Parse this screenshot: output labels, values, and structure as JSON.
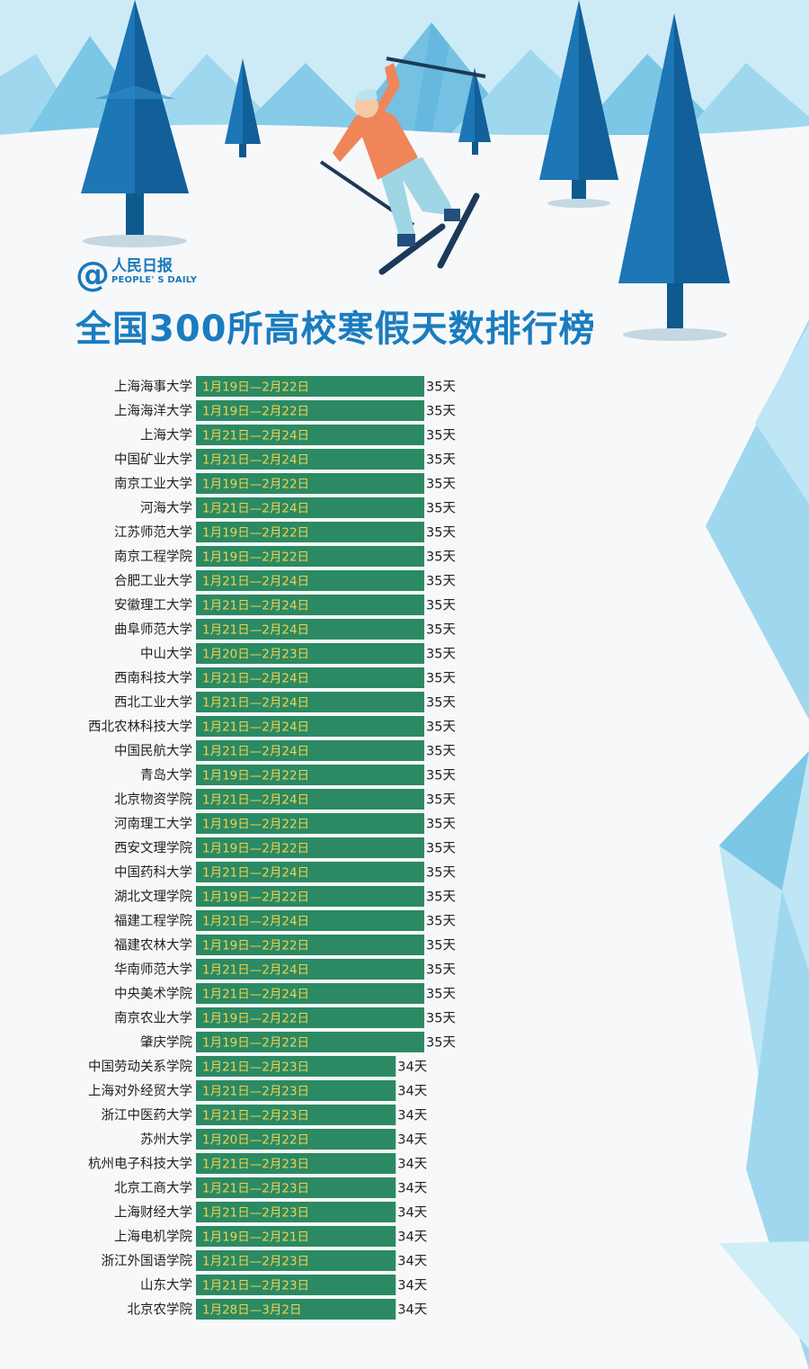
{
  "brand": {
    "at": "@",
    "name": "人民日报",
    "english": "PEOPLE' S DAILY"
  },
  "title": "全国300所高校寒假天数排行榜",
  "colors": {
    "bar": "#2b8a63",
    "date_text": "#f2d24e",
    "title": "#1a7cc0"
  },
  "chart_data": {
    "type": "bar",
    "orientation": "horizontal",
    "title": "全国300所高校寒假天数排行榜",
    "unit": "天",
    "categories": [
      "上海海事大学",
      "上海海洋大学",
      "上海大学",
      "中国矿业大学",
      "南京工业大学",
      "河海大学",
      "江苏师范大学",
      "南京工程学院",
      "合肥工业大学",
      "安徽理工大学",
      "曲阜师范大学",
      "中山大学",
      "西南科技大学",
      "西北工业大学",
      "西北农林科技大学",
      "中国民航大学",
      "青岛大学",
      "北京物资学院",
      "河南理工大学",
      "西安文理学院",
      "中国药科大学",
      "湖北文理学院",
      "福建工程学院",
      "福建农林大学",
      "华南师范大学",
      "中央美术学院",
      "南京农业大学",
      "肇庆学院",
      "中国劳动关系学院",
      "上海对外经贸大学",
      "浙江中医药大学",
      "苏州大学",
      "杭州电子科技大学",
      "北京工商大学",
      "上海财经大学",
      "上海电机学院",
      "浙江外国语学院",
      "山东大学",
      "北京农学院"
    ],
    "dates": [
      "1月19日—2月22日",
      "1月19日—2月22日",
      "1月21日—2月24日",
      "1月21日—2月24日",
      "1月19日—2月22日",
      "1月21日—2月24日",
      "1月19日—2月22日",
      "1月19日—2月22日",
      "1月21日—2月24日",
      "1月21日—2月24日",
      "1月21日—2月24日",
      "1月20日—2月23日",
      "1月21日—2月24日",
      "1月21日—2月24日",
      "1月21日—2月24日",
      "1月21日—2月24日",
      "1月19日—2月22日",
      "1月21日—2月24日",
      "1月19日—2月22日",
      "1月19日—2月22日",
      "1月21日—2月24日",
      "1月19日—2月22日",
      "1月21日—2月24日",
      "1月19日—2月22日",
      "1月21日—2月24日",
      "1月21日—2月24日",
      "1月19日—2月22日",
      "1月19日—2月22日",
      "1月21日—2月23日",
      "1月21日—2月23日",
      "1月21日—2月23日",
      "1月20日—2月22日",
      "1月21日—2月23日",
      "1月21日—2月23日",
      "1月21日—2月23日",
      "1月19日—2月21日",
      "1月21日—2月23日",
      "1月21日—2月23日",
      "1月28日—3月2日"
    ],
    "values": [
      35,
      35,
      35,
      35,
      35,
      35,
      35,
      35,
      35,
      35,
      35,
      35,
      35,
      35,
      35,
      35,
      35,
      35,
      35,
      35,
      35,
      35,
      35,
      35,
      35,
      35,
      35,
      35,
      34,
      34,
      34,
      34,
      34,
      34,
      34,
      34,
      34,
      34,
      34
    ],
    "value_labels": [
      "35天",
      "35天",
      "35天",
      "35天",
      "35天",
      "35天",
      "35天",
      "35天",
      "35天",
      "35天",
      "35天",
      "35天",
      "35天",
      "35天",
      "35天",
      "35天",
      "35天",
      "35天",
      "35天",
      "35天",
      "35天",
      "35天",
      "35天",
      "35天",
      "35天",
      "35天",
      "35天",
      "35天",
      "34天",
      "34天",
      "34天",
      "34天",
      "34天",
      "34天",
      "34天",
      "34天",
      "34天",
      "34天",
      "34天"
    ],
    "xlim": [
      27,
      35
    ]
  }
}
